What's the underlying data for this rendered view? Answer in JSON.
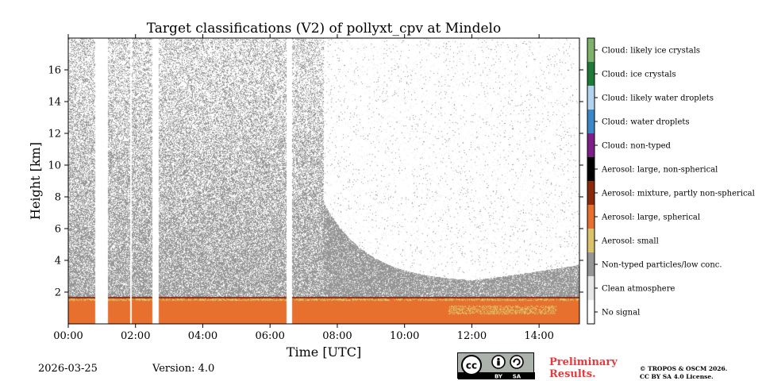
{
  "chart_data": {
    "type": "heatmap",
    "title": "Target classifications (V2) of pollyxt_cpv at Mindelo",
    "xlabel": "Time [UTC]",
    "ylabel": "Height [km]",
    "xlim_hours": [
      0,
      15.2
    ],
    "ylim_km": [
      0,
      18
    ],
    "x_ticks": [
      {
        "hour": 0,
        "label": "00:00"
      },
      {
        "hour": 2,
        "label": "02:00"
      },
      {
        "hour": 4,
        "label": "04:00"
      },
      {
        "hour": 6,
        "label": "06:00"
      },
      {
        "hour": 8,
        "label": "08:00"
      },
      {
        "hour": 10,
        "label": "10:00"
      },
      {
        "hour": 12,
        "label": "12:00"
      },
      {
        "hour": 14,
        "label": "14:00"
      }
    ],
    "y_ticks": [
      {
        "km": 2,
        "label": "2"
      },
      {
        "km": 4,
        "label": "4"
      },
      {
        "km": 6,
        "label": "6"
      },
      {
        "km": 8,
        "label": "8"
      },
      {
        "km": 10,
        "label": "10"
      },
      {
        "km": 12,
        "label": "12"
      },
      {
        "km": 14,
        "label": "14"
      },
      {
        "km": 16,
        "label": "16"
      }
    ],
    "legend": [
      {
        "label": "Cloud: likely ice crystals",
        "color": "#7fb26a"
      },
      {
        "label": "Cloud: ice crystals",
        "color": "#1f7a3a"
      },
      {
        "label": "Cloud: likely water droplets",
        "color": "#b2d4ef"
      },
      {
        "label": "Cloud: water droplets",
        "color": "#3b87c7"
      },
      {
        "label": "Cloud: non-typed",
        "color": "#7e1f87"
      },
      {
        "label": "Aerosol: large, non-spherical",
        "color": "#000000"
      },
      {
        "label": "Aerosol: mixture, partly non-spherical",
        "color": "#8a2a0a"
      },
      {
        "label": "Aerosol: large, spherical",
        "color": "#e8702e"
      },
      {
        "label": "Aerosol: small",
        "color": "#dcc26a"
      },
      {
        "label": "Non-typed particles/low conc.",
        "color": "#969696"
      },
      {
        "label": "Clean atmosphere",
        "color": "#e6e6e6"
      },
      {
        "label": "No signal",
        "color": "#ffffff"
      }
    ],
    "no_signal_gaps_hours": [
      [
        0.78,
        1.17
      ],
      [
        1.83,
        1.88
      ],
      [
        2.5,
        2.67
      ],
      [
        6.48,
        6.65
      ]
    ],
    "layers": {
      "aerosol_large_spherical_top_km": 1.5,
      "aerosol_small_top_km": 1.65,
      "mixture_layer_top_km": 1.75,
      "noisy_region_end_hour": 7.6
    }
  },
  "footer": {
    "date": "2026-03-25",
    "version": "Version: 4.0",
    "license_badge": "CC BY SA",
    "license_badge_by": "BY",
    "license_badge_sa": "SA",
    "license_badge_cc": "cc",
    "preliminary_line1": "Preliminary",
    "preliminary_line2": "Results.",
    "copyright_line1": "© TROPOS & OSCM 2026.",
    "copyright_line2": "CC BY SA 4.0 License."
  },
  "colors": {
    "brand_red": "#e8383d"
  }
}
